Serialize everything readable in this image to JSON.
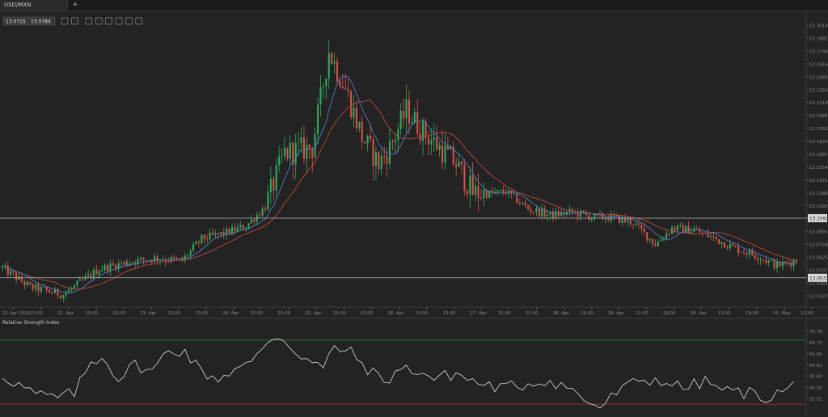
{
  "tab": {
    "label": "USD/MXN",
    "add_label": "+"
  },
  "price_box": {
    "left": "13.0715",
    "right": "13.0784"
  },
  "toolbar_icons": [
    "zoom-in-icon",
    "zoom-out-icon",
    "crosshair-icon",
    "candlestick-type-icon",
    "line-type-icon",
    "ohlc-type-icon",
    "indicator-icon",
    "draw-line-icon"
  ],
  "hlines": {
    "upper": "13.1093",
    "lower": "13.0537"
  },
  "colors": {
    "up": "#2fae5f",
    "down": "#d9534a",
    "ma_red": "#c0473f",
    "ma_blue": "#4f7fbf",
    "rsi": "#dddddd"
  },
  "chart_data": {
    "type": "candlestick",
    "symbol": "USD/MXN",
    "ylim": [
      13.0264,
      13.3014
    ],
    "yticks": [
      "13.3014",
      "13.2881",
      "13.2749",
      "13.2616",
      "13.2483",
      "13.2350",
      "13.2218",
      "13.2085",
      "13.1952",
      "13.1820",
      "13.1687",
      "13.1554",
      "13.1421",
      "13.1289",
      "13.1093",
      "13.1023",
      "13.0891",
      "13.0758",
      "13.0625",
      "13.0537",
      "13.0360",
      "13.0227"
    ],
    "xticks": [
      "21 Apr 2014",
      "23:00",
      "22. Apr",
      "15:00",
      "23:00",
      "23. Apr",
      "15:00",
      "23:00",
      "24. Apr",
      "15:00",
      "23:00",
      "25. Apr",
      "15:00",
      "23:00",
      "26. Apr",
      "15:00",
      "23:00",
      "27. Apr",
      "15:00",
      "23:00",
      "28. Apr",
      "19:00",
      "29. Apr",
      "11:00",
      "19:00",
      "30. Apr",
      "11:00",
      "19:00",
      "01. May",
      "11:00"
    ],
    "close_anchors": [
      [
        0,
        13.063
      ],
      [
        10,
        13.045
      ],
      [
        22,
        13.038
      ],
      [
        35,
        13.062
      ],
      [
        45,
        13.068
      ],
      [
        55,
        13.072
      ],
      [
        65,
        13.07
      ],
      [
        72,
        13.09
      ],
      [
        80,
        13.095
      ],
      [
        88,
        13.102
      ],
      [
        95,
        13.12
      ],
      [
        102,
        13.17
      ],
      [
        112,
        13.175
      ],
      [
        118,
        13.265
      ],
      [
        124,
        13.23
      ],
      [
        130,
        13.185
      ],
      [
        136,
        13.16
      ],
      [
        140,
        13.175
      ],
      [
        146,
        13.21
      ],
      [
        152,
        13.19
      ],
      [
        158,
        13.175
      ],
      [
        164,
        13.16
      ],
      [
        170,
        13.133
      ],
      [
        176,
        13.132
      ],
      [
        182,
        13.134
      ],
      [
        190,
        13.118
      ],
      [
        198,
        13.112
      ],
      [
        206,
        13.115
      ],
      [
        214,
        13.11
      ],
      [
        220,
        13.11
      ],
      [
        228,
        13.105
      ],
      [
        236,
        13.085
      ],
      [
        242,
        13.1
      ],
      [
        250,
        13.098
      ],
      [
        256,
        13.092
      ],
      [
        264,
        13.082
      ],
      [
        272,
        13.075
      ],
      [
        280,
        13.065
      ],
      [
        287,
        13.07
      ]
    ],
    "candle_count": 288,
    "ma_series": [
      "red",
      "blue"
    ],
    "rsi": {
      "title": "Relative Strength Index",
      "ylim": [
        23,
        83
      ],
      "yticks": [
        "75.78",
        "68.73",
        "61.68",
        "54.63",
        "47.60",
        "40.55",
        "33.51"
      ],
      "levels": [
        70,
        30
      ],
      "anchors": [
        [
          0,
          48
        ],
        [
          6,
          42
        ],
        [
          12,
          36
        ],
        [
          20,
          34
        ],
        [
          26,
          37
        ],
        [
          32,
          56
        ],
        [
          36,
          60
        ],
        [
          42,
          46
        ],
        [
          48,
          55
        ],
        [
          54,
          50
        ],
        [
          60,
          64
        ],
        [
          66,
          63
        ],
        [
          72,
          50
        ],
        [
          78,
          46
        ],
        [
          84,
          52
        ],
        [
          90,
          55
        ],
        [
          96,
          70
        ],
        [
          100,
          73
        ],
        [
          104,
          66
        ],
        [
          110,
          58
        ],
        [
          116,
          52
        ],
        [
          120,
          66
        ],
        [
          126,
          62
        ],
        [
          132,
          52
        ],
        [
          138,
          44
        ],
        [
          144,
          52
        ],
        [
          150,
          51
        ],
        [
          156,
          46
        ],
        [
          164,
          49
        ],
        [
          172,
          43
        ],
        [
          180,
          40
        ],
        [
          188,
          42
        ],
        [
          196,
          45
        ],
        [
          204,
          41
        ],
        [
          210,
          33
        ],
        [
          216,
          28
        ],
        [
          222,
          37
        ],
        [
          230,
          45
        ],
        [
          238,
          45
        ],
        [
          246,
          40
        ],
        [
          254,
          44
        ],
        [
          262,
          38
        ],
        [
          270,
          37
        ],
        [
          276,
          34
        ],
        [
          282,
          38
        ],
        [
          287,
          43
        ]
      ]
    }
  }
}
